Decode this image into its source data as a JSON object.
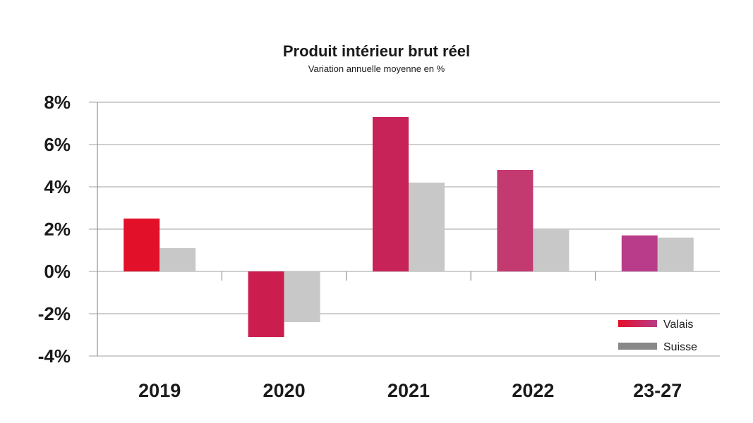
{
  "chart_data": {
    "type": "bar",
    "title": "Produit intérieur brut réel",
    "subtitle": "Variation annuelle moyenne en %",
    "categories": [
      "2019",
      "2020",
      "2021",
      "2022",
      "23-27"
    ],
    "series": [
      {
        "name": "Valais",
        "values": [
          2.5,
          -3.1,
          7.3,
          4.8,
          1.7
        ]
      },
      {
        "name": "Suisse",
        "values": [
          1.1,
          -2.4,
          4.2,
          2.0,
          1.6
        ]
      }
    ],
    "ylim": [
      -4,
      8
    ],
    "yticks": [
      8,
      6,
      4,
      2,
      0,
      -2,
      -4
    ],
    "ytick_labels": [
      "8%",
      "6%",
      "4%",
      "2%",
      "0%",
      "-2%",
      "-4%"
    ],
    "xlabel": "",
    "ylabel": "",
    "grid": true,
    "legend_position": "bottom-right"
  },
  "colors": {
    "valais_gradient": [
      "#e3102a",
      "#cc1e4e",
      "#c82359",
      "#c33a71",
      "#b83c8a"
    ],
    "suisse": "#c8c8c8",
    "legend_valais_start": "#e3102a",
    "legend_valais_end": "#b83c8a",
    "legend_suisse": "#888888",
    "grid": "#b3b3b3",
    "axis": "#999999"
  }
}
